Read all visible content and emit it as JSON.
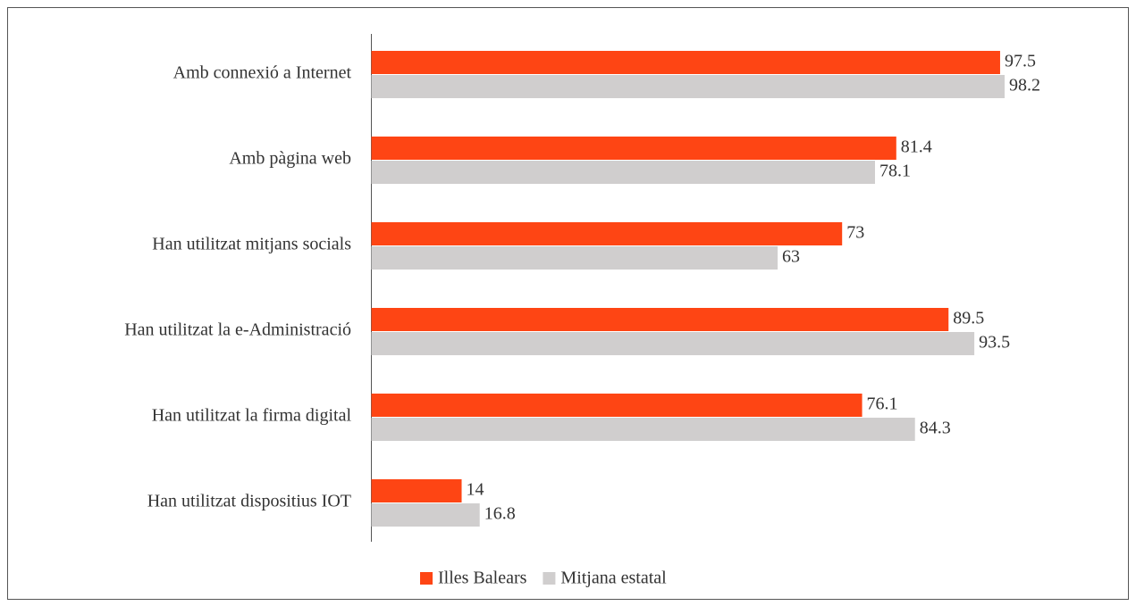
{
  "chart_data": {
    "type": "hbar",
    "categories": [
      "Amb connexió a Internet",
      "Amb pàgina web",
      "Han utilitzat mitjans socials",
      "Han utilitzat la e-Administració",
      "Han utilitzat la firma digital",
      "Han utilitzat dispositius IOT"
    ],
    "series": [
      {
        "name": "Illes Balears",
        "color": "#fe4514",
        "values": [
          97.5,
          81.4,
          73,
          89.5,
          76.1,
          14
        ]
      },
      {
        "name": "Mitjana estatal",
        "color": "#d0cece",
        "values": [
          98.2,
          78.1,
          63,
          93.5,
          84.3,
          16.8
        ]
      }
    ],
    "xlim": [
      0,
      100
    ],
    "legend": "bottom"
  }
}
